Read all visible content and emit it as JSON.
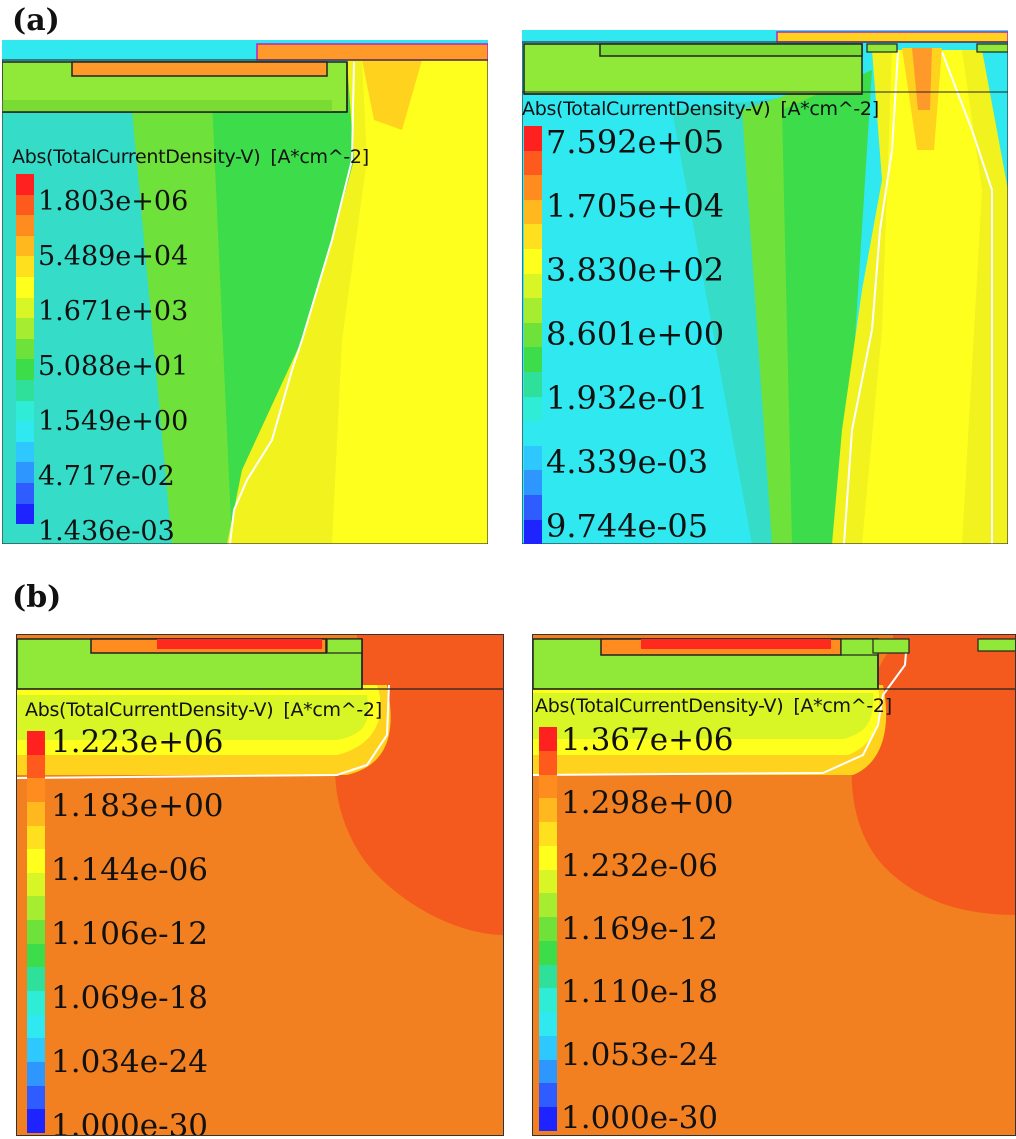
{
  "figure": {
    "section_a": "(a)",
    "section_b": "(b)"
  },
  "panels": [
    {
      "id": "a-left",
      "colorbar_title": "Abs(TotalCurrentDensity-V)",
      "colorbar_unit": "[A*cm^-2]",
      "ticks": [
        "1.803e+06",
        "5.489e+04",
        "1.671e+03",
        "5.088e+01",
        "1.549e+00",
        "4.717e-02",
        "1.436e-03"
      ]
    },
    {
      "id": "a-right",
      "colorbar_title": "Abs(TotalCurrentDensity-V)",
      "colorbar_unit": "[A*cm^-2]",
      "ticks": [
        "7.592e+05",
        "1.705e+04",
        "3.830e+02",
        "8.601e+00",
        "1.932e-01",
        "4.339e-03",
        "9.744e-05"
      ]
    },
    {
      "id": "b-left",
      "colorbar_title": "Abs(TotalCurrentDensity-V)",
      "colorbar_unit": "[A*cm^-2]",
      "ticks": [
        "1.223e+06",
        "1.183e+00",
        "1.144e-06",
        "1.106e-12",
        "1.069e-18",
        "1.034e-24",
        "1.000e-30"
      ]
    },
    {
      "id": "b-right",
      "colorbar_title": "Abs(TotalCurrentDensity-V)",
      "colorbar_unit": "[A*cm^-2]",
      "ticks": [
        "1.367e+06",
        "1.298e+00",
        "1.232e-06",
        "1.169e-12",
        "1.110e-18",
        "1.053e-24",
        "1.000e-30"
      ]
    }
  ],
  "colormap": [
    "#ff2020",
    "#ff5a1e",
    "#ff8c1e",
    "#ffb81e",
    "#ffe01e",
    "#ffff1e",
    "#d8f526",
    "#a6ec30",
    "#6ee23a",
    "#3cdc4a",
    "#2ee09a",
    "#2eecd6",
    "#30e8f0",
    "#2ec8ff",
    "#2e96ff",
    "#2e5cff",
    "#1e24ff"
  ]
}
